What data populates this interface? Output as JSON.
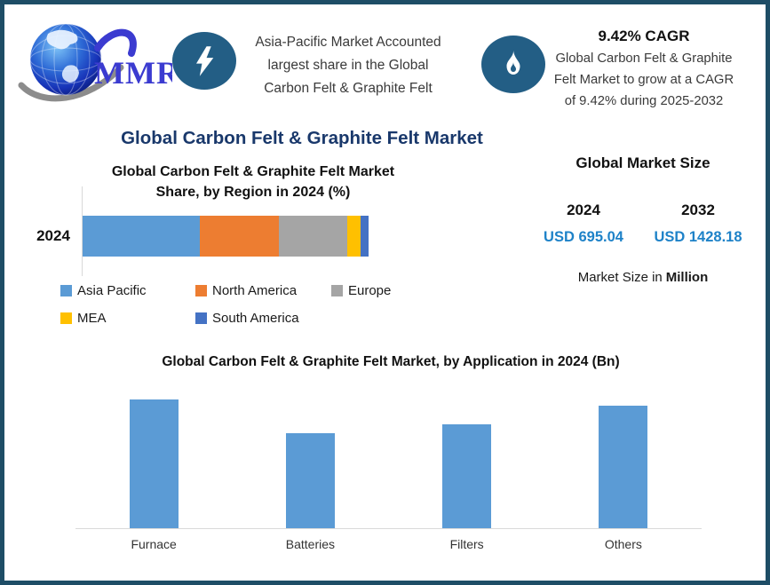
{
  "colors": {
    "border": "#1E4D66",
    "badge_circle": "#235E85",
    "navy_title": "#19386B",
    "value_blue": "#1E82C8",
    "bar_blue": "#5B9BD5",
    "axis_gray": "#D9D9D9"
  },
  "header": {
    "logo": {
      "text": "MMR"
    },
    "highlight_lines": [
      "Asia-Pacific Market Accounted",
      "largest share in the Global",
      "Carbon Felt & Graphite Felt"
    ],
    "cagr": {
      "title": "9.42% CAGR",
      "lines": [
        "Global Carbon Felt & Graphite",
        "Felt Market to grow at a CAGR",
        "of 9.42% during 2025-2032"
      ]
    }
  },
  "main_title": "Global Carbon Felt & Graphite Felt Market",
  "market_size": {
    "title": "Global Market Size",
    "columns": [
      {
        "year": "2024",
        "value": "USD 695.04"
      },
      {
        "year": "2032",
        "value": "USD 1428.18"
      }
    ],
    "footnote_prefix": "Market Size in",
    "footnote_bold": "Million"
  },
  "chart_data": [
    {
      "type": "bar",
      "orientation": "horizontal-stacked",
      "title": "Global Carbon Felt & Graphite Felt Market Share, by Region in 2024 (%)",
      "title_lines": [
        "Global Carbon Felt & Graphite Felt Market",
        "Share, by Region in 2024 (%)"
      ],
      "categories": [
        "2024"
      ],
      "series": [
        {
          "name": "Asia Pacific",
          "color": "#5B9BD5",
          "values": [
            41
          ]
        },
        {
          "name": "North America",
          "color": "#ED7D31",
          "values": [
            27.5
          ]
        },
        {
          "name": "Europe",
          "color": "#A5A5A5",
          "values": [
            24
          ]
        },
        {
          "name": "MEA",
          "color": "#FFC000",
          "values": [
            4.7
          ]
        },
        {
          "name": "South America",
          "color": "#4472C4",
          "values": [
            2.8
          ]
        }
      ],
      "xlim": [
        0,
        100
      ],
      "legend_position": "bottom",
      "grid": false
    },
    {
      "type": "bar",
      "title": "Global Carbon Felt & Graphite Felt Market, by Application in 2024 (Bn)",
      "categories": [
        "Furnace",
        "Batteries",
        "Filters",
        "Others"
      ],
      "values": [
        1.0,
        0.74,
        0.81,
        0.95
      ],
      "value_note": "relative heights; no y-axis labels shown",
      "bar_color": "#5B9BD5",
      "grid": false
    }
  ]
}
